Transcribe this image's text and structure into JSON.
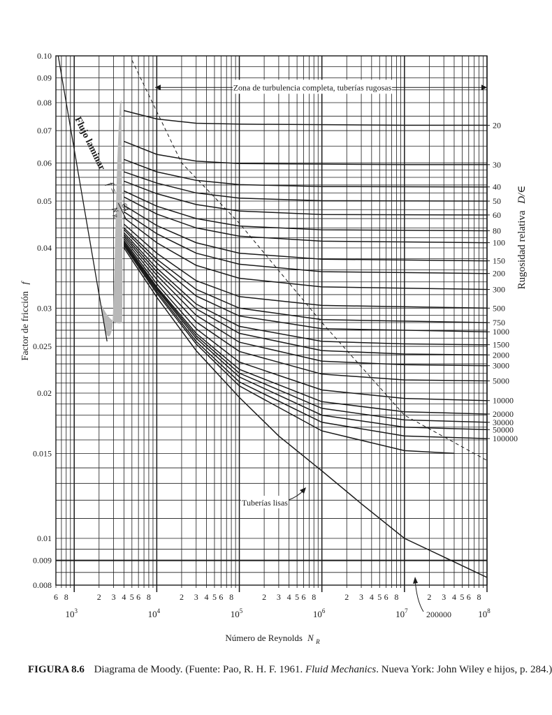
{
  "chart_data": {
    "type": "line",
    "x": {
      "label": "Número de Reynolds",
      "label_symbol": "N",
      "label_subscript": "R",
      "scale": "log",
      "range": [
        600,
        100000000
      ],
      "decade_labels": [
        {
          "base": "10",
          "exp": "3",
          "value": 1000
        },
        {
          "base": "10",
          "exp": "4",
          "value": 10000
        },
        {
          "base": "10",
          "exp": "5",
          "value": 100000
        },
        {
          "base": "10",
          "exp": "6",
          "value": 1000000
        },
        {
          "base": "10",
          "exp": "7",
          "value": 10000000
        },
        {
          "base": "10",
          "exp": "8",
          "value": 100000000
        }
      ],
      "minor_tick_labels": [
        "6",
        "8",
        "2",
        "3",
        "4",
        "5",
        "6",
        "8",
        "2",
        "3",
        "4",
        "5",
        "6",
        "8",
        "2",
        "3",
        "4",
        "5",
        "6",
        "8",
        "2",
        "3",
        "4",
        "5",
        "6",
        "8",
        "2",
        "3",
        "4",
        "5",
        "6",
        "8"
      ]
    },
    "y": {
      "label": "Factor de fricción",
      "label_symbol": "f",
      "scale": "log",
      "range": [
        0.008,
        0.1
      ],
      "tick_labels": [
        "0.10",
        "0.09",
        "0.08",
        "0.07",
        "0.06",
        "0.05",
        "0.04",
        "0.03",
        "0.025",
        "0.02",
        "0.015",
        "0.01",
        "0.009",
        "0.008"
      ],
      "tick_values": [
        0.1,
        0.09,
        0.08,
        0.07,
        0.06,
        0.05,
        0.04,
        0.03,
        0.025,
        0.02,
        0.015,
        0.01,
        0.009,
        0.008
      ]
    },
    "right_axis": {
      "label": "Rugosidad relativa",
      "label_symbol": "D/∈",
      "labels": [
        "20",
        "30",
        "40",
        "50",
        "60",
        "80",
        "100",
        "150",
        "200",
        "300",
        "500",
        "750",
        "1000",
        "1500",
        "2000",
        "3000",
        "5000",
        "10000",
        "20000",
        "30000",
        "50000",
        "100000"
      ],
      "values": [
        0.0718,
        0.0595,
        0.0535,
        0.05,
        0.0468,
        0.0434,
        0.041,
        0.0376,
        0.0354,
        0.0328,
        0.03,
        0.028,
        0.0268,
        0.0252,
        0.024,
        0.0228,
        0.0212,
        0.0193,
        0.0181,
        0.0174,
        0.0168,
        0.0161
      ]
    },
    "series": [
      {
        "name": "20",
        "points": [
          [
            4000,
            0.077
          ],
          [
            10000,
            0.074
          ],
          [
            30000,
            0.0725
          ],
          [
            100000,
            0.0722
          ],
          [
            10000000,
            0.0718
          ],
          [
            100000000,
            0.0718
          ]
        ]
      },
      {
        "name": "30",
        "points": [
          [
            4000,
            0.0665
          ],
          [
            10000,
            0.0625
          ],
          [
            30000,
            0.0605
          ],
          [
            100000,
            0.0598
          ],
          [
            10000000,
            0.0595
          ],
          [
            100000000,
            0.0595
          ]
        ]
      },
      {
        "name": "40",
        "points": [
          [
            4000,
            0.061
          ],
          [
            10000,
            0.0575
          ],
          [
            30000,
            0.0552
          ],
          [
            100000,
            0.0541
          ],
          [
            1000000,
            0.0536
          ],
          [
            100000000,
            0.0535
          ]
        ]
      },
      {
        "name": "50",
        "points": [
          [
            4000,
            0.0575
          ],
          [
            10000,
            0.0545
          ],
          [
            30000,
            0.052
          ],
          [
            100000,
            0.0507
          ],
          [
            1000000,
            0.0501
          ],
          [
            100000000,
            0.05
          ]
        ]
      },
      {
        "name": "60",
        "points": [
          [
            4000,
            0.055
          ],
          [
            10000,
            0.0518
          ],
          [
            30000,
            0.0492
          ],
          [
            100000,
            0.0477
          ],
          [
            1000000,
            0.0469
          ],
          [
            100000000,
            0.0468
          ]
        ]
      },
      {
        "name": "80",
        "points": [
          [
            4000,
            0.0525
          ],
          [
            10000,
            0.0488
          ],
          [
            30000,
            0.046
          ],
          [
            100000,
            0.0444
          ],
          [
            1000000,
            0.0436
          ],
          [
            100000000,
            0.0434
          ]
        ]
      },
      {
        "name": "100",
        "points": [
          [
            4000,
            0.051
          ],
          [
            10000,
            0.047
          ],
          [
            30000,
            0.044
          ],
          [
            100000,
            0.0423
          ],
          [
            1000000,
            0.0413
          ],
          [
            100000000,
            0.041
          ]
        ]
      },
      {
        "name": "150",
        "points": [
          [
            4000,
            0.049
          ],
          [
            10000,
            0.0445
          ],
          [
            30000,
            0.041
          ],
          [
            100000,
            0.039
          ],
          [
            1000000,
            0.0379
          ],
          [
            100000000,
            0.0376
          ]
        ]
      },
      {
        "name": "200",
        "points": [
          [
            4000,
            0.0475
          ],
          [
            10000,
            0.0428
          ],
          [
            30000,
            0.039
          ],
          [
            100000,
            0.037
          ],
          [
            1000000,
            0.0357
          ],
          [
            100000000,
            0.0354
          ]
        ]
      },
      {
        "name": "300",
        "points": [
          [
            4000,
            0.0462
          ],
          [
            10000,
            0.041
          ],
          [
            30000,
            0.0368
          ],
          [
            100000,
            0.0346
          ],
          [
            1000000,
            0.0332
          ],
          [
            100000000,
            0.0328
          ]
        ]
      },
      {
        "name": "500",
        "points": [
          [
            4000,
            0.0448
          ],
          [
            10000,
            0.039
          ],
          [
            30000,
            0.0342
          ],
          [
            100000,
            0.0317
          ],
          [
            1000000,
            0.0304
          ],
          [
            100000000,
            0.03
          ]
        ]
      },
      {
        "name": "750",
        "points": [
          [
            4000,
            0.044
          ],
          [
            10000,
            0.0379
          ],
          [
            30000,
            0.0328
          ],
          [
            100000,
            0.03
          ],
          [
            1000000,
            0.0284
          ],
          [
            100000000,
            0.028
          ]
        ]
      },
      {
        "name": "1000",
        "points": [
          [
            4000,
            0.0436
          ],
          [
            10000,
            0.0372
          ],
          [
            30000,
            0.0318
          ],
          [
            100000,
            0.0289
          ],
          [
            1000000,
            0.0272
          ],
          [
            100000000,
            0.0268
          ]
        ]
      },
      {
        "name": "1500",
        "points": [
          [
            4000,
            0.043
          ],
          [
            10000,
            0.0363
          ],
          [
            30000,
            0.0306
          ],
          [
            100000,
            0.0275
          ],
          [
            1000000,
            0.0256
          ],
          [
            10000000,
            0.0253
          ],
          [
            100000000,
            0.0252
          ]
        ]
      },
      {
        "name": "2000",
        "points": [
          [
            4000,
            0.0426
          ],
          [
            10000,
            0.0357
          ],
          [
            30000,
            0.0299
          ],
          [
            100000,
            0.0266
          ],
          [
            1000000,
            0.0245
          ],
          [
            10000000,
            0.0241
          ],
          [
            100000000,
            0.024
          ]
        ]
      },
      {
        "name": "3000",
        "points": [
          [
            4000,
            0.0422
          ],
          [
            10000,
            0.0351
          ],
          [
            30000,
            0.029
          ],
          [
            100000,
            0.0255
          ],
          [
            1000000,
            0.0233
          ],
          [
            10000000,
            0.0229
          ],
          [
            100000000,
            0.0228
          ]
        ]
      },
      {
        "name": "5000",
        "points": [
          [
            4000,
            0.0418
          ],
          [
            10000,
            0.0344
          ],
          [
            30000,
            0.0281
          ],
          [
            100000,
            0.0244
          ],
          [
            1000000,
            0.0219
          ],
          [
            10000000,
            0.0213
          ],
          [
            100000000,
            0.0212
          ]
        ]
      },
      {
        "name": "10000",
        "points": [
          [
            4000,
            0.0414
          ],
          [
            10000,
            0.0337
          ],
          [
            30000,
            0.0272
          ],
          [
            100000,
            0.0232
          ],
          [
            1000000,
            0.0203
          ],
          [
            10000000,
            0.0195
          ],
          [
            100000000,
            0.0193
          ]
        ]
      },
      {
        "name": "20000",
        "points": [
          [
            4000,
            0.0411
          ],
          [
            10000,
            0.0332
          ],
          [
            30000,
            0.0266
          ],
          [
            100000,
            0.0224
          ],
          [
            1000000,
            0.0192
          ],
          [
            10000000,
            0.0183
          ],
          [
            100000000,
            0.0181
          ]
        ]
      },
      {
        "name": "30000",
        "points": [
          [
            4000,
            0.0409
          ],
          [
            10000,
            0.033
          ],
          [
            30000,
            0.0263
          ],
          [
            100000,
            0.022
          ],
          [
            1000000,
            0.0186
          ],
          [
            10000000,
            0.0176
          ],
          [
            100000000,
            0.0174
          ]
        ]
      },
      {
        "name": "50000",
        "points": [
          [
            4000,
            0.0408
          ],
          [
            10000,
            0.0328
          ],
          [
            30000,
            0.026
          ],
          [
            100000,
            0.0216
          ],
          [
            1000000,
            0.018
          ],
          [
            10000000,
            0.017
          ],
          [
            100000000,
            0.0168
          ]
        ]
      },
      {
        "name": "100000",
        "points": [
          [
            4000,
            0.0406
          ],
          [
            10000,
            0.0325
          ],
          [
            30000,
            0.0256
          ],
          [
            100000,
            0.0211
          ],
          [
            1000000,
            0.0174
          ],
          [
            10000000,
            0.0163
          ],
          [
            100000000,
            0.0161
          ]
        ]
      },
      {
        "name": "200000",
        "points": [
          [
            4000,
            0.0404
          ],
          [
            10000,
            0.0322
          ],
          [
            30000,
            0.0253
          ],
          [
            100000,
            0.0207
          ],
          [
            1000000,
            0.0167
          ],
          [
            10000000,
            0.0152
          ],
          [
            40000000,
            0.015
          ]
        ]
      },
      {
        "name": "Tuberías lisas",
        "points": [
          [
            4000,
            0.04
          ],
          [
            10000,
            0.0316
          ],
          [
            30000,
            0.0245
          ],
          [
            100000,
            0.0196
          ],
          [
            300000,
            0.0163
          ],
          [
            1000000,
            0.0138
          ],
          [
            3000000,
            0.0118
          ],
          [
            10000000,
            0.01
          ],
          [
            100000000,
            0.0083
          ]
        ]
      }
    ],
    "laminar": {
      "label": "Flujo laminar",
      "formula_lhs": "f =",
      "numerator": "64",
      "denominator": "N",
      "denominator_sub": "R",
      "points": [
        [
          640,
          0.1
        ],
        [
          1000,
          0.064
        ],
        [
          2000,
          0.032
        ],
        [
          2500,
          0.0256
        ]
      ]
    },
    "transition_zone": {
      "x_range": [
        2000,
        4000
      ]
    },
    "complete_turbulence_boundary": {
      "points": [
        [
          5000,
          0.098
        ],
        [
          20000,
          0.06
        ],
        [
          100000,
          0.045
        ],
        [
          1000000,
          0.028
        ],
        [
          10000000,
          0.018
        ],
        [
          100000000,
          0.0145
        ]
      ]
    },
    "annotations": {
      "complete_turbulence": "Zona de turbulencia completa, tuberías rugosas",
      "smooth_pipes": "Tuberías lisas",
      "series_label_200000": "200000"
    },
    "grid": true
  },
  "caption": {
    "figure": "FIGURA 8.6",
    "text_before": "Diagrama de Moody. (Fuente: Pao, R. H. F. 1961. ",
    "book": "Fluid Mechanics",
    "text_after": ". Nueva York: John Wiley e hijos, p. 284.)"
  },
  "colors": {
    "ink": "#1a1a1a",
    "grid": "#1a1a1a",
    "transition": "#b8b8b8"
  }
}
